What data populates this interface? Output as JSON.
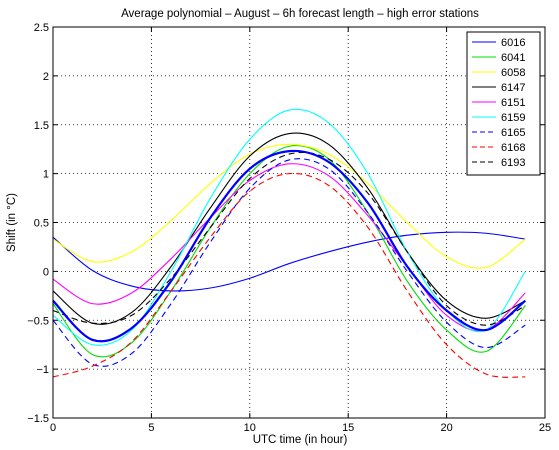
{
  "chart_data": {
    "type": "line",
    "title": "Average polynomial – August – 6h forecast length – high error stations",
    "xlabel": "UTC time (in hour)",
    "ylabel": "Shift (in °C)",
    "xlim": [
      0,
      25
    ],
    "ylim": [
      -1.5,
      2.5
    ],
    "xticks": [
      0,
      5,
      10,
      15,
      20,
      25
    ],
    "yticks": [
      -1.5,
      -1,
      -0.5,
      0,
      0.5,
      1,
      1.5,
      2,
      2.5
    ],
    "xtick_labels": [
      "0",
      "5",
      "10",
      "15",
      "20",
      "25"
    ],
    "ytick_labels": [
      "−1.5",
      "−1",
      "−0.5",
      "0",
      "0.5",
      "1",
      "1.5",
      "2",
      "2.5"
    ],
    "grid": true,
    "legend_position": "top-right",
    "x": [
      0,
      2,
      4,
      6,
      8,
      10,
      12,
      14,
      16,
      18,
      20,
      22,
      24
    ],
    "series": [
      {
        "name": "6016",
        "color": "#0000ff",
        "dash": "solid",
        "values": [
          0.35,
          0.01,
          -0.15,
          -0.2,
          -0.17,
          -0.07,
          0.08,
          0.2,
          0.3,
          0.37,
          0.4,
          0.39,
          0.33
        ]
      },
      {
        "name": "6041",
        "color": "#00dd00",
        "dash": "solid",
        "values": [
          -0.33,
          -0.85,
          -0.73,
          -0.2,
          0.45,
          1.0,
          1.28,
          1.15,
          0.6,
          -0.1,
          -0.6,
          -0.82,
          -0.35
        ]
      },
      {
        "name": "6058",
        "color": "#ffff00",
        "dash": "solid",
        "values": [
          0.33,
          0.1,
          0.2,
          0.52,
          0.9,
          1.2,
          1.3,
          1.2,
          0.9,
          0.5,
          0.15,
          0.04,
          0.33
        ]
      },
      {
        "name": "6147",
        "color": "#000000",
        "dash": "solid",
        "values": [
          -0.2,
          -0.53,
          -0.42,
          0.05,
          0.65,
          1.18,
          1.41,
          1.3,
          0.85,
          0.2,
          -0.3,
          -0.48,
          -0.3
        ]
      },
      {
        "name": "6151",
        "color": "#ff00ff",
        "dash": "solid",
        "values": [
          -0.08,
          -0.33,
          -0.22,
          0.13,
          0.55,
          0.93,
          1.1,
          0.98,
          0.57,
          0.05,
          -0.45,
          -0.6,
          -0.22
        ]
      },
      {
        "name": "6159",
        "color": "#00ffff",
        "dash": "solid",
        "values": [
          -0.45,
          -0.75,
          -0.6,
          0.0,
          0.75,
          1.35,
          1.65,
          1.52,
          1.0,
          0.2,
          -0.4,
          -0.6,
          0.0
        ]
      },
      {
        "name": "6165",
        "color": "#0000ff",
        "dash": "dashed",
        "values": [
          -0.5,
          -0.95,
          -0.84,
          -0.33,
          0.3,
          0.85,
          1.14,
          1.05,
          0.6,
          0.0,
          -0.52,
          -0.78,
          -0.55
        ]
      },
      {
        "name": "6168",
        "color": "#ff0000",
        "dash": "dashed",
        "values": [
          -1.08,
          -0.97,
          -0.72,
          -0.2,
          0.35,
          0.82,
          1.0,
          0.88,
          0.45,
          -0.2,
          -0.75,
          -1.05,
          -1.08
        ]
      },
      {
        "name": "6193",
        "color": "#000000",
        "dash": "dashed",
        "values": [
          -0.4,
          -0.53,
          -0.45,
          -0.07,
          0.45,
          0.95,
          1.2,
          1.15,
          0.8,
          0.2,
          -0.35,
          -0.55,
          -0.35
        ]
      },
      {
        "name": "",
        "color": "#0000ff",
        "dash": "solid",
        "width": 2.2,
        "values": [
          -0.3,
          -0.7,
          -0.58,
          -0.1,
          0.55,
          1.05,
          1.23,
          1.12,
          0.7,
          0.05,
          -0.4,
          -0.6,
          -0.3
        ]
      }
    ]
  }
}
